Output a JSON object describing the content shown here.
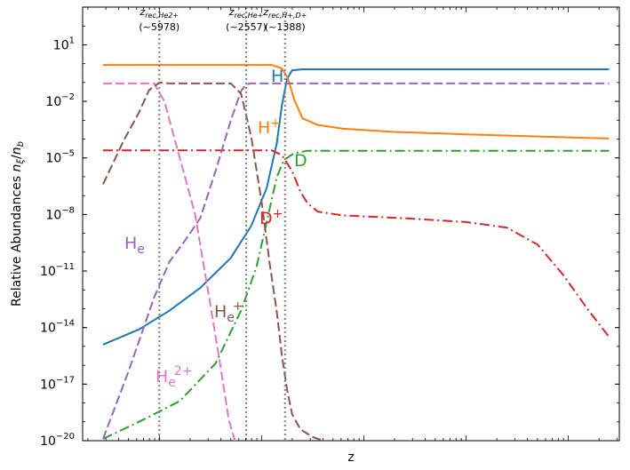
{
  "chart_data": {
    "type": "line",
    "title": "",
    "xlabel": "z",
    "ylabel": "Relative Abundances n_ξ/n_b",
    "y_scale": "log",
    "x_scale": "log",
    "x_reversed": true,
    "x_ticklabels_shown": false,
    "ylim": [
      1e-20,
      1000.0
    ],
    "y_ticks": [
      {
        "value": 10.0,
        "label": "10^1"
      },
      {
        "value": 0.01,
        "label": "10^-2"
      },
      {
        "value": 1e-05,
        "label": "10^-5"
      },
      {
        "value": 1e-08,
        "label": "10^-8"
      },
      {
        "value": 1e-11,
        "label": "10^-11"
      },
      {
        "value": 1e-14,
        "label": "10^-14"
      },
      {
        "value": 1e-17,
        "label": "10^-17"
      },
      {
        "value": 1e-20,
        "label": "10^-20"
      }
    ],
    "grid": false,
    "legend": "none",
    "recombination_lines": [
      {
        "label_top": "z_rec,He2+",
        "label_bottom": "(~5978)",
        "z": 5978
      },
      {
        "label_top": "z_rec,He+",
        "label_bottom": "(~2557)",
        "z": 2557
      },
      {
        "label_top": "z_rec,H+,D+",
        "label_bottom": "(~1388)",
        "z": 1388
      }
    ],
    "series": [
      {
        "name": "H",
        "color": "#1f77b4",
        "dash": "solid",
        "points": [
          [
            -0.55,
            -14.9
          ],
          [
            -0.2,
            -14.1
          ],
          [
            0.1,
            -13.1
          ],
          [
            0.4,
            -11.9
          ],
          [
            0.7,
            -10.3
          ],
          [
            0.9,
            -8.6
          ],
          [
            1.05,
            -6.6
          ],
          [
            1.15,
            -4.2
          ],
          [
            1.2,
            -2.2
          ],
          [
            1.25,
            -0.8
          ],
          [
            1.3,
            -0.35
          ],
          [
            1.4,
            -0.3
          ],
          [
            2.2,
            -0.3
          ],
          [
            4.4,
            -0.3
          ]
        ],
        "label": {
          "text": "H",
          "x": 1.5,
          "y": -0.3
        }
      },
      {
        "name": "H+",
        "color": "#ff7f0e",
        "dash": "solid",
        "points": [
          [
            -0.55,
            -0.07
          ],
          [
            1.1,
            -0.07
          ],
          [
            1.2,
            -0.25
          ],
          [
            1.26,
            -0.8
          ],
          [
            1.32,
            -1.9
          ],
          [
            1.4,
            -2.9
          ],
          [
            1.55,
            -3.25
          ],
          [
            1.8,
            -3.45
          ],
          [
            2.3,
            -3.62
          ],
          [
            3.0,
            -3.75
          ],
          [
            3.6,
            -3.85
          ],
          [
            4.4,
            -3.97
          ]
        ],
        "label": {
          "text": "H+",
          "x": 1.5,
          "y": -2.9
        }
      },
      {
        "name": "D",
        "color": "#2ca02c",
        "dash": "dashdot",
        "points": [
          [
            -0.55,
            -19.9
          ],
          [
            -0.2,
            -19.0
          ],
          [
            0.2,
            -17.9
          ],
          [
            0.55,
            -15.9
          ],
          [
            0.8,
            -13.1
          ],
          [
            0.95,
            -10.8
          ],
          [
            1.05,
            -8.4
          ],
          [
            1.15,
            -6.0
          ],
          [
            1.22,
            -5.1
          ],
          [
            1.32,
            -4.75
          ],
          [
            1.45,
            -4.62
          ],
          [
            4.4,
            -4.62
          ]
        ],
        "label": {
          "text": "D",
          "x": 1.75,
          "y": -4.6
        }
      },
      {
        "name": "D+",
        "color": "#d62728",
        "dash": "dashdot",
        "points": [
          [
            -0.55,
            -4.6
          ],
          [
            1.1,
            -4.6
          ],
          [
            1.2,
            -4.85
          ],
          [
            1.3,
            -5.7
          ],
          [
            1.38,
            -6.8
          ],
          [
            1.45,
            -7.4
          ],
          [
            1.55,
            -7.85
          ],
          [
            1.8,
            -8.05
          ],
          [
            2.4,
            -8.2
          ],
          [
            3.0,
            -8.4
          ],
          [
            3.4,
            -8.7
          ],
          [
            3.7,
            -9.6
          ],
          [
            3.95,
            -11.2
          ],
          [
            4.2,
            -13.1
          ],
          [
            4.4,
            -14.5
          ]
        ],
        "label": {
          "text": "D+",
          "x": 1.75,
          "y": -7.7
        }
      },
      {
        "name": "He",
        "color": "#9467bd",
        "dash": "dashed",
        "points": [
          [
            -0.55,
            -19.9
          ],
          [
            -0.3,
            -16.3
          ],
          [
            -0.05,
            -12.4
          ],
          [
            0.1,
            -10.5
          ],
          [
            0.25,
            -9.4
          ],
          [
            0.4,
            -8.2
          ],
          [
            0.55,
            -5.7
          ],
          [
            0.7,
            -3.0
          ],
          [
            0.8,
            -1.45
          ],
          [
            0.85,
            -1.1
          ],
          [
            0.9,
            -1.05
          ],
          [
            4.4,
            -1.05
          ]
        ],
        "label": {
          "text": "He",
          "x": 0.05,
          "y": -9.6
        }
      },
      {
        "name": "He2+",
        "color": "#e377c2",
        "dash": "dashed",
        "points": [
          [
            -0.55,
            -1.05
          ],
          [
            -0.05,
            -1.05
          ],
          [
            0.05,
            -2.0
          ],
          [
            0.2,
            -5.0
          ],
          [
            0.35,
            -8.0
          ],
          [
            0.5,
            -12.8
          ],
          [
            0.6,
            -16.1
          ],
          [
            0.68,
            -18.9
          ],
          [
            0.75,
            -20.2
          ]
        ],
        "label": {
          "text": "He2+",
          "x": 0.4,
          "y": -16.7
        }
      },
      {
        "name": "He+",
        "color": "#8c564b",
        "dash": "dashed",
        "points": [
          [
            -0.55,
            -6.4
          ],
          [
            -0.35,
            -4.1
          ],
          [
            -0.2,
            -2.6
          ],
          [
            -0.1,
            -1.4
          ],
          [
            0.0,
            -1.0
          ],
          [
            0.1,
            -1.05
          ],
          [
            0.7,
            -1.05
          ],
          [
            0.8,
            -1.6
          ],
          [
            0.9,
            -3.9
          ],
          [
            1.0,
            -7.3
          ],
          [
            1.08,
            -10.6
          ],
          [
            1.15,
            -13.2
          ],
          [
            1.2,
            -15.5
          ],
          [
            1.25,
            -17.3
          ],
          [
            1.3,
            -18.6
          ],
          [
            1.38,
            -19.4
          ],
          [
            1.5,
            -19.8
          ],
          [
            1.7,
            -20.2
          ]
        ],
        "label": {
          "text": "He+",
          "x": 1.0,
          "y": -13.7
        }
      }
    ]
  }
}
